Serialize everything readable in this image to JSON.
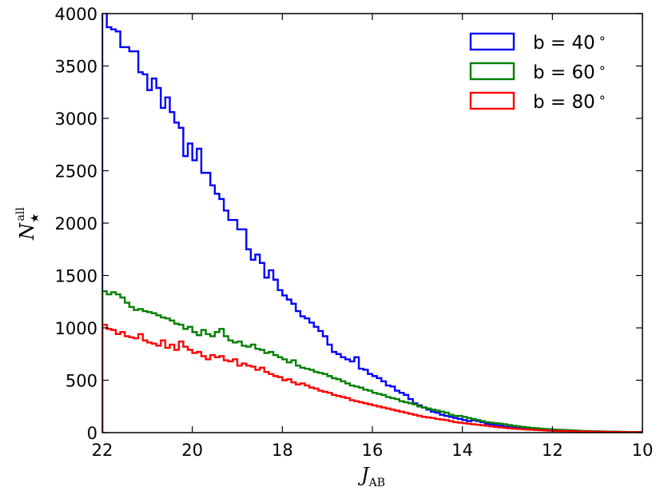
{
  "chart_data": {
    "type": "line",
    "style": "step-histogram",
    "xlabel_main": "J",
    "xlabel_sub": "AB",
    "ylabel_main": "N",
    "ylabel_sub": "★",
    "ylabel_sup": "all",
    "xlim": [
      22,
      10
    ],
    "ylim": [
      0,
      4000
    ],
    "bin_width": 0.1,
    "x_start": 22,
    "x_ticks": [
      22,
      20,
      18,
      16,
      14,
      12,
      10
    ],
    "x_tick_labels": [
      "22",
      "20",
      "18",
      "16",
      "14",
      "12",
      "10"
    ],
    "y_ticks": [
      0,
      500,
      1000,
      1500,
      2000,
      2500,
      3000,
      3500,
      4000
    ],
    "y_tick_labels": [
      "0",
      "500",
      "1000",
      "1500",
      "2000",
      "2500",
      "3000",
      "3500",
      "4000"
    ],
    "grid": false,
    "legend_position": "top-right",
    "series": [
      {
        "name": "b = 40",
        "degree_symbol": "∘",
        "color": "#0000ff",
        "values": [
          4020,
          3870,
          3850,
          3830,
          3680,
          3680,
          3640,
          3640,
          3440,
          3420,
          3270,
          3380,
          3290,
          3100,
          3200,
          3060,
          2960,
          2910,
          2640,
          2760,
          2600,
          2710,
          2480,
          2480,
          2360,
          2280,
          2230,
          2120,
          2030,
          2030,
          1940,
          1940,
          1750,
          1650,
          1700,
          1620,
          1480,
          1550,
          1460,
          1360,
          1310,
          1270,
          1230,
          1160,
          1110,
          1090,
          1050,
          1010,
          970,
          920,
          840,
          770,
          750,
          720,
          700,
          680,
          720,
          610,
          600,
          560,
          540,
          520,
          490,
          450,
          440,
          400,
          380,
          360,
          320,
          280,
          260,
          240,
          220,
          200,
          190,
          170,
          160,
          150,
          140,
          130,
          120,
          110,
          120,
          110,
          100,
          85,
          80,
          72,
          65,
          58,
          52,
          47,
          42,
          38,
          35,
          32,
          29,
          27,
          25,
          23,
          22,
          20,
          19,
          17,
          16,
          15,
          14,
          13,
          12,
          11,
          11,
          10,
          9,
          8,
          8,
          7,
          6,
          6,
          5,
          5
        ]
      },
      {
        "name": "b = 60",
        "degree_symbol": "∘",
        "color": "#008000",
        "values": [
          1350,
          1320,
          1340,
          1320,
          1290,
          1240,
          1200,
          1170,
          1180,
          1160,
          1150,
          1140,
          1120,
          1100,
          1090,
          1070,
          1040,
          1030,
          990,
          1010,
          960,
          930,
          980,
          940,
          920,
          960,
          990,
          920,
          880,
          860,
          870,
          830,
          820,
          840,
          800,
          790,
          760,
          770,
          740,
          720,
          700,
          670,
          690,
          640,
          620,
          610,
          600,
          580,
          570,
          560,
          540,
          520,
          510,
          490,
          470,
          450,
          440,
          430,
          410,
          400,
          380,
          370,
          360,
          340,
          330,
          320,
          300,
          290,
          280,
          270,
          250,
          240,
          230,
          220,
          210,
          200,
          190,
          170,
          160,
          160,
          150,
          140,
          130,
          120,
          110,
          100,
          95,
          90,
          85,
          80,
          72,
          65,
          60,
          55,
          50,
          45,
          42,
          38,
          35,
          32,
          29,
          27,
          25,
          23,
          21,
          19,
          17,
          15,
          14,
          13,
          12,
          11,
          10,
          9,
          8,
          7,
          6,
          6,
          5,
          5
        ]
      },
      {
        "name": "b = 80",
        "degree_symbol": "∘",
        "color": "#ff0000",
        "values": [
          1030,
          990,
          980,
          940,
          960,
          920,
          910,
          900,
          940,
          880,
          860,
          850,
          830,
          880,
          810,
          840,
          790,
          870,
          820,
          790,
          760,
          770,
          730,
          700,
          740,
          720,
          730,
          690,
          680,
          700,
          640,
          660,
          640,
          630,
          600,
          620,
          580,
          560,
          540,
          530,
          500,
          510,
          480,
          460,
          470,
          450,
          430,
          420,
          400,
          390,
          380,
          360,
          350,
          340,
          330,
          310,
          300,
          290,
          280,
          270,
          260,
          250,
          240,
          230,
          220,
          210,
          200,
          190,
          180,
          170,
          160,
          150,
          145,
          140,
          130,
          125,
          120,
          110,
          100,
          95,
          90,
          85,
          80,
          75,
          70,
          65,
          60,
          55,
          50,
          46,
          42,
          38,
          35,
          32,
          29,
          27,
          25,
          23,
          21,
          19,
          17,
          16,
          15,
          14,
          13,
          12,
          11,
          10,
          9,
          9,
          8,
          7,
          7,
          6,
          6,
          5,
          5,
          4,
          4,
          4
        ]
      }
    ]
  }
}
